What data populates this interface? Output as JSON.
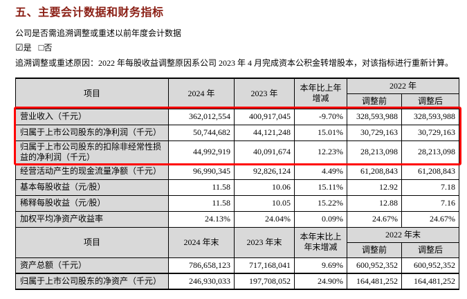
{
  "page": {
    "title": "五、主要会计数据和财务指标",
    "question": "公司是否需追溯调整或重述以前年度会计数据",
    "checkbox_checked": "☑",
    "checkbox_unchecked": "□",
    "answer_yes": "是",
    "answer_no": "否",
    "reason": "追溯调整或重述原因：2022 年每股收益调整原因系公司 2023 年 4 月完成资本公积金转增股本，对该指标进行重新计算。"
  },
  "colors": {
    "title_text": "#8B2016",
    "highlight_border": "#FF0000",
    "header_bg": "#D9D9D9",
    "grid_border": "#000000"
  },
  "annual_table": {
    "header": {
      "item": "项目",
      "col_2024": "2024 年",
      "col_2023": "2023 年",
      "col_change": "本年比上年增减",
      "col_2022": "2022 年",
      "col_before": "调整前",
      "col_after": "调整后"
    },
    "rows": [
      {
        "label": "营业收入（千元）",
        "v2024": "362,012,554",
        "v2023": "400,917,045",
        "change": "-9.70%",
        "before": "328,593,988",
        "after": "328,593,988"
      },
      {
        "label": "归属于上市公司股东的净利润（千元）",
        "v2024": "50,744,682",
        "v2023": "44,121,248",
        "change": "15.01%",
        "before": "30,729,163",
        "after": "30,729,163"
      },
      {
        "label": "归属于上市公司股东的扣除非经常性损益的净利润（千元）",
        "v2024": "44,992,919",
        "v2023": "40,091,674",
        "change": "12.23%",
        "before": "28,213,098",
        "after": "28,213,098"
      },
      {
        "label": "经营活动产生的现金流量净额（千元）",
        "v2024": "96,990,345",
        "v2023": "92,826,124",
        "change": "4.49%",
        "before": "61,208,843",
        "after": "61,208,843"
      },
      {
        "label": "基本每股收益（元/股）",
        "v2024": "11.58",
        "v2023": "10.06",
        "change": "15.11%",
        "before": "12.92",
        "after": "7.18"
      },
      {
        "label": "稀释每股收益（元/股）",
        "v2024": "11.58",
        "v2023": "10.05",
        "change": "15.22%",
        "before": "12.88",
        "after": "7.16"
      },
      {
        "label": "加权平均净资产收益率",
        "v2024": "24.13%",
        "v2023": "24.04%",
        "change": "0.09%",
        "before": "24.67%",
        "after": "24.67%"
      }
    ]
  },
  "period_end_table": {
    "header": {
      "item": "项目",
      "col_2024": "2024 年末",
      "col_2023": "2023 年末",
      "col_change": "本年末比上年末增减",
      "col_2022": "2022 年末",
      "col_before": "调整前",
      "col_after": "调整后"
    },
    "rows": [
      {
        "label": "资产总额（千元）",
        "v2024": "786,658,123",
        "v2023": "717,168,041",
        "change": "9.69%",
        "before": "600,952,352",
        "after": "600,952,352"
      },
      {
        "label": "归属于上市公司股东的净资产（千元）",
        "v2024": "246,930,033",
        "v2023": "197,708,052",
        "change": "24.90%",
        "before": "164,481,252",
        "after": "164,481,252"
      }
    ]
  }
}
